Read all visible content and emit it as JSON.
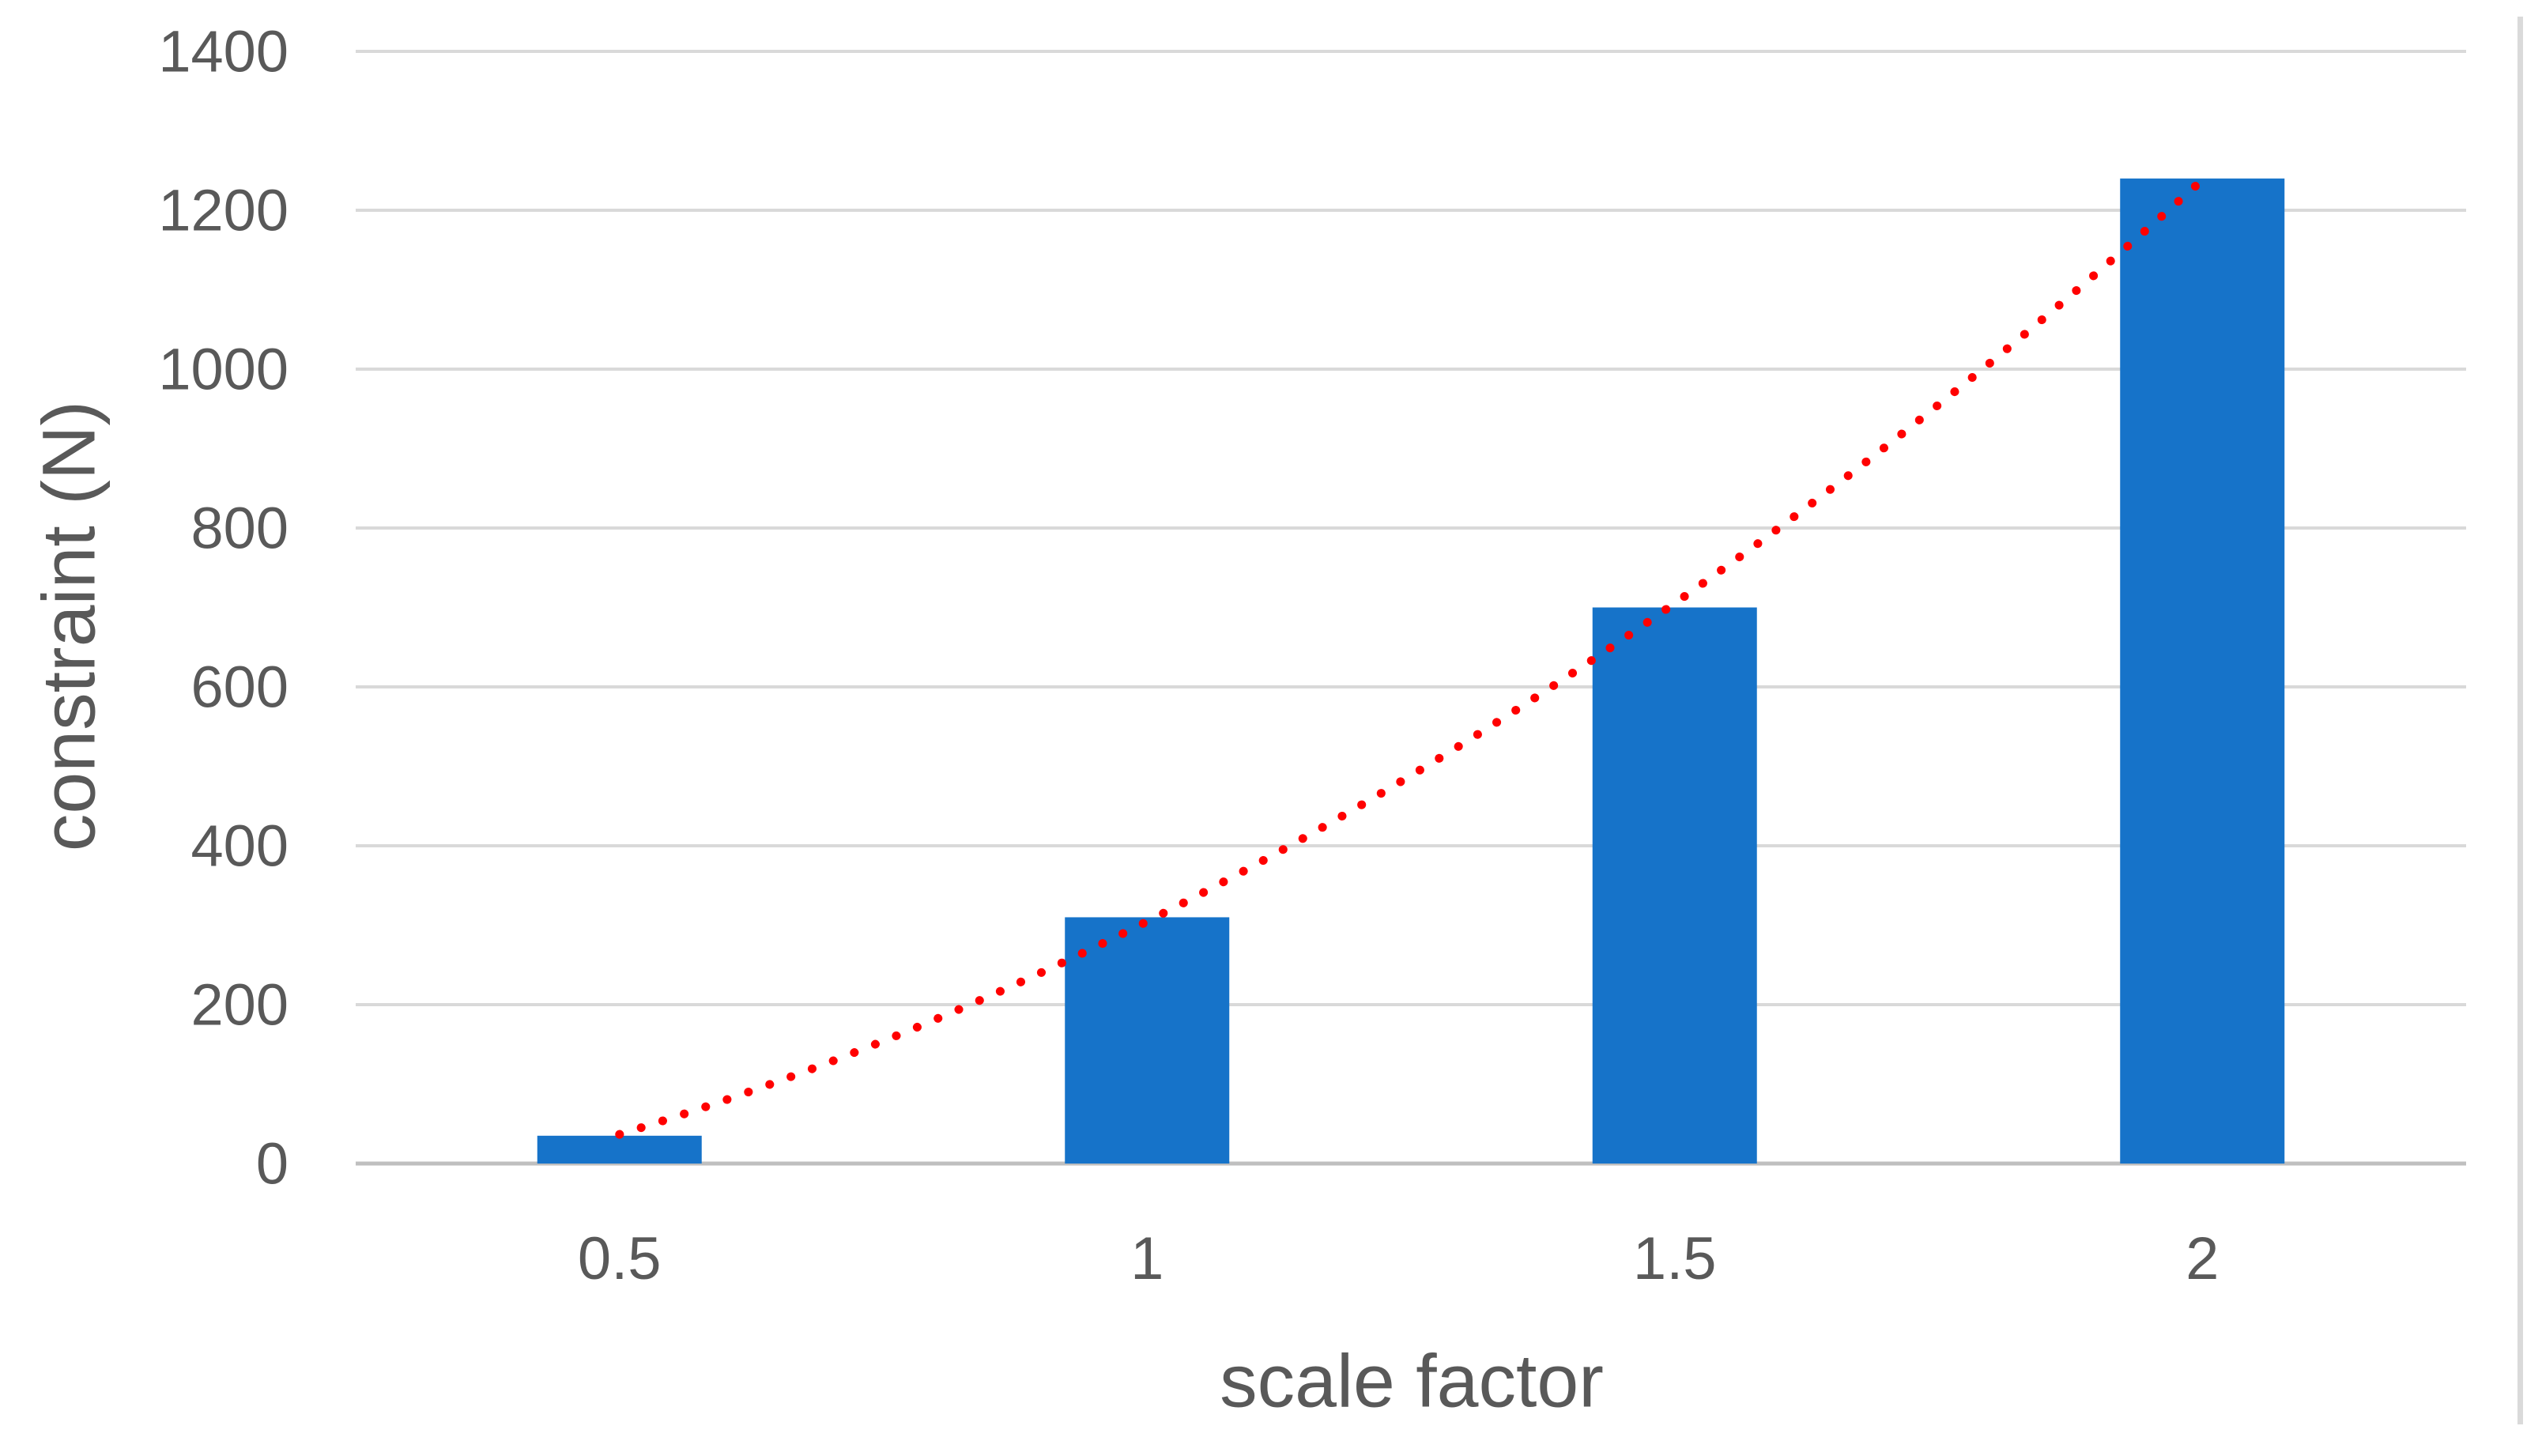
{
  "colors": {
    "bar": "#1673C9",
    "trend": "#FF0000",
    "gridline": "#D9D9D9",
    "axis_line": "#BFBFBF",
    "text": "#595959",
    "right_border": "#DADADA",
    "background": "#FFFFFF"
  },
  "chart_data": {
    "type": "bar",
    "title": "",
    "categories": [
      "0.5",
      "1",
      "1.5",
      "2"
    ],
    "values": [
      35,
      310,
      700,
      1240
    ],
    "xlabel": "scale factor",
    "ylabel": "constraint (N)",
    "ylim": [
      0,
      1400
    ],
    "y_ticks": [
      0,
      200,
      400,
      600,
      800,
      1000,
      1200,
      1400
    ],
    "y_tick_labels": [
      "0",
      "200",
      "400",
      "600",
      "800",
      "1000",
      "1200",
      "1400"
    ],
    "grid": true,
    "legend": false,
    "trendline": {
      "style": "dotted",
      "shape": "polynomial",
      "color": "#FF0000",
      "x": [
        0.5,
        1,
        1.5,
        2
      ],
      "y": [
        35,
        310,
        700,
        1240
      ]
    }
  }
}
